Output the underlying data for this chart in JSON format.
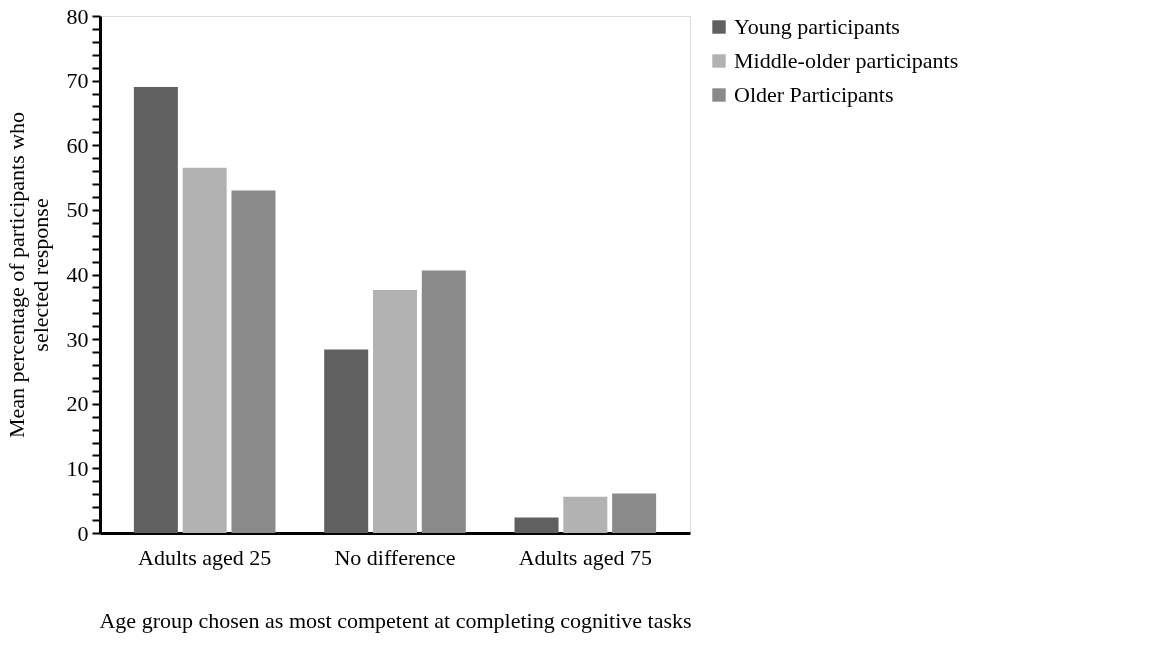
{
  "chart_data": {
    "type": "bar",
    "xlabel": "Age group chosen as most competent at completing cognitive tasks",
    "ylabel": "Mean percentage of participants who selected response",
    "categories": [
      "Adults aged 25",
      "No difference",
      "Adults aged 75"
    ],
    "series": [
      {
        "name": "Young participants",
        "color": "#606060",
        "values": [
          69.0,
          28.4,
          2.4
        ]
      },
      {
        "name": "Middle-older participants",
        "color": "#b2b2b2",
        "values": [
          56.5,
          37.6,
          5.6
        ]
      },
      {
        "name": "Older Participants",
        "color": "#8a8a8a",
        "values": [
          53.0,
          40.6,
          6.1
        ]
      }
    ],
    "ylim": [
      0,
      80
    ],
    "yticks": [
      0,
      {
        "value": 2,
        "label": null
      },
      {
        "value": 4,
        "label": null
      },
      {
        "value": 6,
        "label": null
      },
      {
        "value": 8,
        "label": null
      },
      10,
      {
        "value": 12,
        "label": null
      },
      {
        "value": 14,
        "label": null
      },
      {
        "value": 16,
        "label": null
      },
      {
        "value": 18,
        "label": null
      },
      20,
      {
        "value": 22,
        "label": null
      },
      {
        "value": 24,
        "label": null
      },
      {
        "value": 26,
        "label": null
      },
      {
        "value": 28,
        "label": null
      },
      30,
      {
        "value": 32,
        "label": null
      },
      {
        "value": 34,
        "label": null
      },
      {
        "value": 36,
        "label": null
      },
      {
        "value": 38,
        "label": null
      },
      40,
      {
        "value": 42,
        "label": null
      },
      {
        "value": 44,
        "label": null
      },
      {
        "value": 46,
        "label": null
      },
      {
        "value": 48,
        "label": null
      },
      50,
      {
        "value": 52,
        "label": null
      },
      {
        "value": 54,
        "label": null
      },
      {
        "value": 56,
        "label": null
      },
      {
        "value": 58,
        "label": null
      },
      60,
      {
        "value": 62,
        "label": null
      },
      {
        "value": 64,
        "label": null
      },
      {
        "value": 66,
        "label": null
      },
      {
        "value": 68,
        "label": null
      },
      70,
      {
        "value": 72,
        "label": null
      },
      {
        "value": 74,
        "label": null
      },
      {
        "value": 76,
        "label": null
      },
      {
        "value": 78,
        "label": null
      },
      80
    ],
    "grid": false,
    "legend": "right"
  }
}
